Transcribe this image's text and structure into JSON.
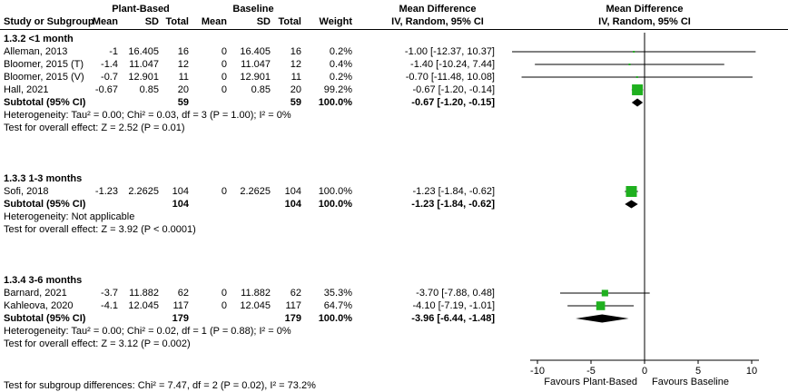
{
  "header": {
    "study_col": "Study or Subgroup",
    "group_experimental": "Plant-Based",
    "group_control": "Baseline",
    "mean": "Mean",
    "sd": "SD",
    "total": "Total",
    "weight": "Weight",
    "md_title": "Mean Difference",
    "ci_method": "IV, Random, 95% CI"
  },
  "chart_data": {
    "type": "forest",
    "effect_measure": "Mean Difference",
    "method": "IV, Random, 95% CI",
    "x_ticks": [
      -10,
      -5,
      0,
      5,
      10
    ],
    "x_range": [
      -12.5,
      12.5
    ],
    "marker_color": "#1fb01f",
    "favours_left": "Favours Plant-Based",
    "favours_right": "Favours Baseline",
    "footer": "Test for subgroup differences: Chi² = 7.47, df = 2 (P = 0.02), I² = 73.2%",
    "subgroups": [
      {
        "label": "1.3.2 <1 month",
        "studies": [
          {
            "name": "Alleman, 2013",
            "exp_mean": "-1",
            "exp_sd": "16.405",
            "exp_total": "16",
            "ctl_mean": "0",
            "ctl_sd": "16.405",
            "ctl_total": "16",
            "weight": "0.2%",
            "weight_pct": 0.2,
            "md": -1.0,
            "ci_lo": -12.37,
            "ci_hi": 10.37,
            "ci_text": "-1.00 [-12.37, 10.37]"
          },
          {
            "name": "Bloomer, 2015 (T)",
            "exp_mean": "-1.4",
            "exp_sd": "11.047",
            "exp_total": "12",
            "ctl_mean": "0",
            "ctl_sd": "11.047",
            "ctl_total": "12",
            "weight": "0.4%",
            "weight_pct": 0.4,
            "md": -1.4,
            "ci_lo": -10.24,
            "ci_hi": 7.44,
            "ci_text": "-1.40 [-10.24, 7.44]"
          },
          {
            "name": "Bloomer, 2015 (V)",
            "exp_mean": "-0.7",
            "exp_sd": "12.901",
            "exp_total": "11",
            "ctl_mean": "0",
            "ctl_sd": "12.901",
            "ctl_total": "11",
            "weight": "0.2%",
            "weight_pct": 0.2,
            "md": -0.7,
            "ci_lo": -11.48,
            "ci_hi": 10.08,
            "ci_text": "-0.70 [-11.48, 10.08]"
          },
          {
            "name": "Hall, 2021",
            "exp_mean": "-0.67",
            "exp_sd": "0.85",
            "exp_total": "20",
            "ctl_mean": "0",
            "ctl_sd": "0.85",
            "ctl_total": "20",
            "weight": "99.2%",
            "weight_pct": 99.2,
            "md": -0.67,
            "ci_lo": -1.2,
            "ci_hi": -0.14,
            "ci_text": "-0.67 [-1.20, -0.14]"
          }
        ],
        "subtotal": {
          "label": "Subtotal (95% CI)",
          "exp_total": "59",
          "ctl_total": "59",
          "weight": "100.0%",
          "md": -0.67,
          "ci_lo": -1.2,
          "ci_hi": -0.15,
          "ci_text": "-0.67 [-1.20, -0.15]"
        },
        "heterogeneity": "Heterogeneity: Tau² = 0.00; Chi² = 0.03, df = 3 (P = 1.00); I² = 0%",
        "overall_effect": "Test for overall effect: Z = 2.52 (P = 0.01)"
      },
      {
        "label": "1.3.3 1-3 months",
        "studies": [
          {
            "name": "Sofi, 2018",
            "exp_mean": "-1.23",
            "exp_sd": "2.2625",
            "exp_total": "104",
            "ctl_mean": "0",
            "ctl_sd": "2.2625",
            "ctl_total": "104",
            "weight": "100.0%",
            "weight_pct": 100.0,
            "md": -1.23,
            "ci_lo": -1.84,
            "ci_hi": -0.62,
            "ci_text": "-1.23 [-1.84, -0.62]"
          }
        ],
        "subtotal": {
          "label": "Subtotal (95% CI)",
          "exp_total": "104",
          "ctl_total": "104",
          "weight": "100.0%",
          "md": -1.23,
          "ci_lo": -1.84,
          "ci_hi": -0.62,
          "ci_text": "-1.23 [-1.84, -0.62]"
        },
        "heterogeneity": "Heterogeneity: Not applicable",
        "overall_effect": "Test for overall effect: Z = 3.92 (P < 0.0001)"
      },
      {
        "label": "1.3.4 3-6 months",
        "studies": [
          {
            "name": "Barnard, 2021",
            "exp_mean": "-3.7",
            "exp_sd": "11.882",
            "exp_total": "62",
            "ctl_mean": "0",
            "ctl_sd": "11.882",
            "ctl_total": "62",
            "weight": "35.3%",
            "weight_pct": 35.3,
            "md": -3.7,
            "ci_lo": -7.88,
            "ci_hi": 0.48,
            "ci_text": "-3.70 [-7.88, 0.48]"
          },
          {
            "name": "Kahleova, 2020",
            "exp_mean": "-4.1",
            "exp_sd": "12.045",
            "exp_total": "117",
            "ctl_mean": "0",
            "ctl_sd": "12.045",
            "ctl_total": "117",
            "weight": "64.7%",
            "weight_pct": 64.7,
            "md": -4.1,
            "ci_lo": -7.19,
            "ci_hi": -1.01,
            "ci_text": "-4.10 [-7.19, -1.01]"
          }
        ],
        "subtotal": {
          "label": "Subtotal (95% CI)",
          "exp_total": "179",
          "ctl_total": "179",
          "weight": "100.0%",
          "md": -3.96,
          "ci_lo": -6.44,
          "ci_hi": -1.48,
          "ci_text": "-3.96 [-6.44, -1.48]"
        },
        "heterogeneity": "Heterogeneity: Tau² = 0.00; Chi² = 0.02, df = 1 (P = 0.88); I² = 0%",
        "overall_effect": "Test for overall effect: Z = 3.12 (P = 0.002)"
      }
    ]
  }
}
